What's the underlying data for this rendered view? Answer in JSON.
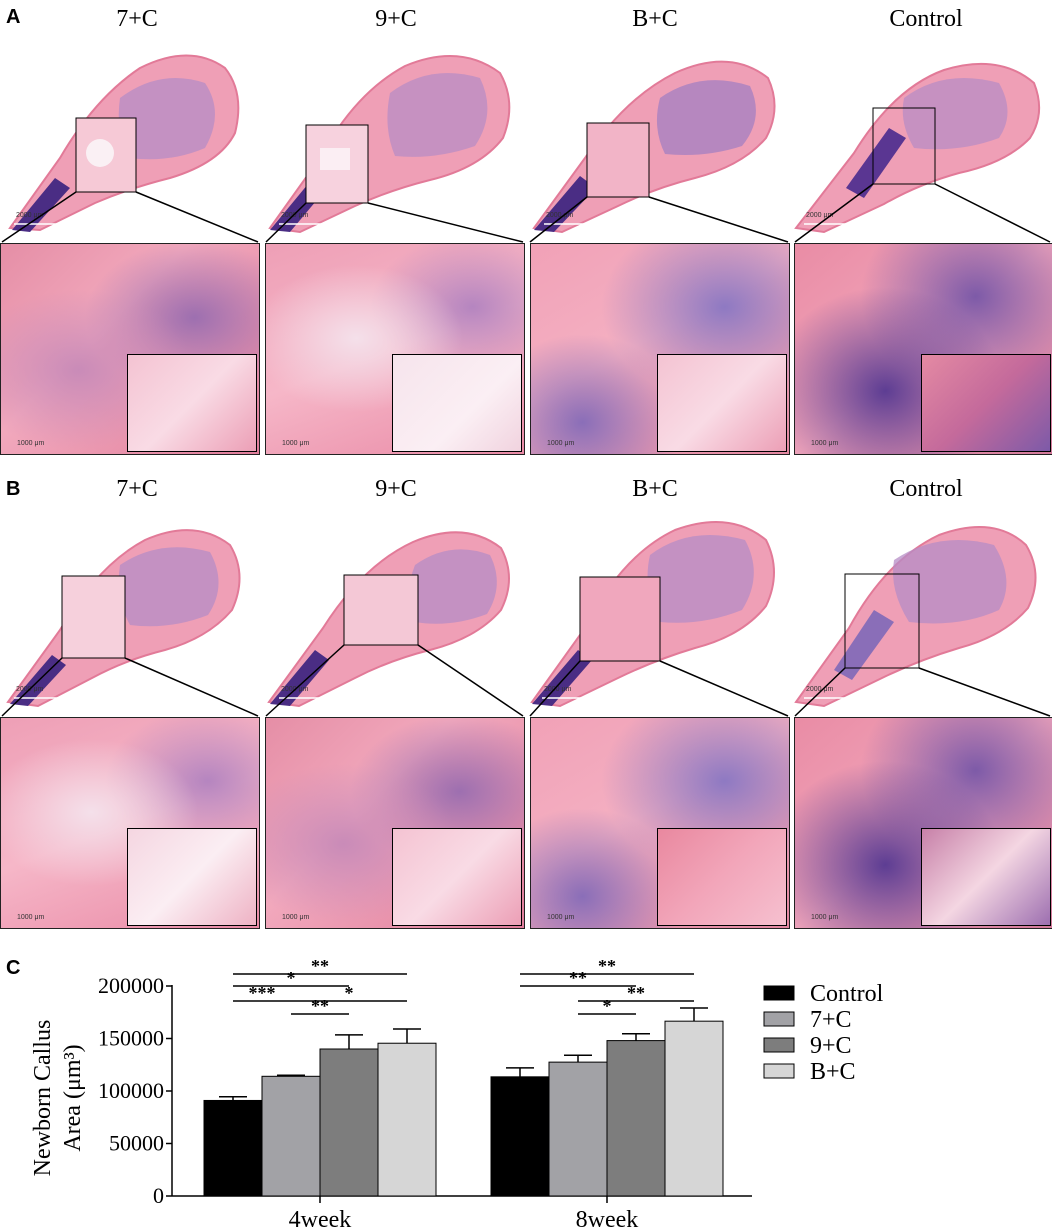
{
  "panels": [
    {
      "letter": "A",
      "columns": [
        "7+C",
        "9+C",
        "B+C",
        "Control"
      ]
    },
    {
      "letter": "B",
      "columns": [
        "7+C",
        "9+C",
        "B+C",
        "Control"
      ]
    }
  ],
  "scale_labels": {
    "overview": "2000 μm",
    "zoom": "1000 μm"
  },
  "chart_panel_letter": "C",
  "colors": {
    "Control": "#000000",
    "7+C": "#a2a2a6",
    "9+C": "#7d7d7d",
    "B+C": "#d6d6d6"
  },
  "chart_data": {
    "type": "bar",
    "categories": [
      "4week",
      "8week"
    ],
    "ylabel_line1": "Newborn Callus",
    "ylabel_line2": "Area (μm³)",
    "ylim": [
      0,
      200000
    ],
    "yticks": [
      0,
      50000,
      100000,
      150000,
      200000
    ],
    "series": [
      {
        "name": "Control",
        "values": [
          91000,
          113500
        ],
        "errors": [
          3500,
          8500
        ]
      },
      {
        "name": "7+C",
        "values": [
          114000,
          127500
        ],
        "errors": [
          1000,
          6500
        ]
      },
      {
        "name": "9+C",
        "values": [
          140000,
          148000
        ],
        "errors": [
          13500,
          6500
        ]
      },
      {
        "name": "B+C",
        "values": [
          145500,
          166500
        ],
        "errors": [
          13500,
          12500
        ]
      }
    ],
    "significance": [
      {
        "group": 0,
        "from": 0,
        "to": 3,
        "label": "**"
      },
      {
        "group": 0,
        "from": 0,
        "to": 2,
        "label": "*"
      },
      {
        "group": 0,
        "from": 0,
        "to": 1,
        "label": "***"
      },
      {
        "group": 0,
        "from": 1,
        "to": 3,
        "label": "*"
      },
      {
        "group": 0,
        "from": 1,
        "to": 2,
        "label": "**"
      },
      {
        "group": 1,
        "from": 0,
        "to": 3,
        "label": "**"
      },
      {
        "group": 1,
        "from": 0,
        "to": 2,
        "label": "**"
      },
      {
        "group": 1,
        "from": 1,
        "to": 3,
        "label": "**"
      },
      {
        "group": 1,
        "from": 1,
        "to": 2,
        "label": "*"
      }
    ]
  }
}
